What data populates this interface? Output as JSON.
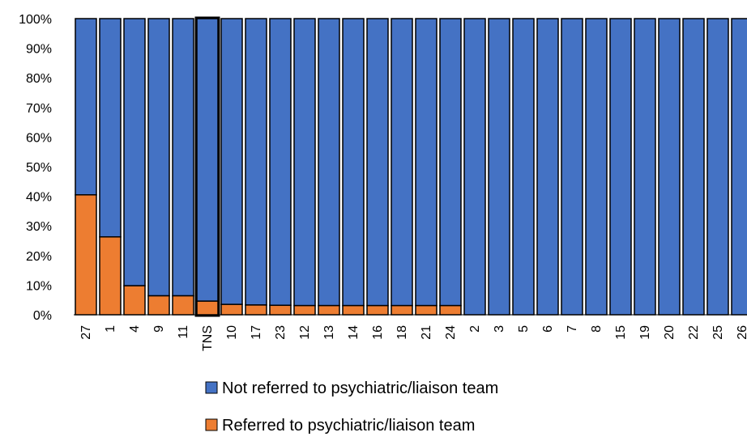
{
  "chart_data": {
    "type": "bar",
    "stacked": true,
    "normalized": true,
    "categories": [
      "27",
      "1",
      "4",
      "9",
      "11",
      "TNS",
      "10",
      "17",
      "23",
      "12",
      "13",
      "14",
      "16",
      "18",
      "21",
      "24",
      "2",
      "3",
      "5",
      "6",
      "7",
      "8",
      "15",
      "19",
      "20",
      "22",
      "25",
      "26"
    ],
    "highlighted_category": "TNS",
    "series": [
      {
        "name": "Referred to psychiatric/liaison team",
        "color": "#ED7D31",
        "values": [
          40.5,
          26.3,
          9.8,
          6.4,
          6.4,
          4.6,
          3.5,
          3.3,
          3.2,
          3.1,
          3.1,
          3.1,
          3.1,
          3.1,
          3.1,
          3.1,
          0,
          0,
          0,
          0,
          0,
          0,
          0,
          0,
          0,
          0,
          0,
          0
        ]
      },
      {
        "name": "Not referred to psychiatric/liaison team",
        "color": "#4472C4",
        "values": [
          59.5,
          73.7,
          90.2,
          93.6,
          93.6,
          95.4,
          96.5,
          96.7,
          96.8,
          96.9,
          96.9,
          96.9,
          96.9,
          96.9,
          96.9,
          96.9,
          100,
          100,
          100,
          100,
          100,
          100,
          100,
          100,
          100,
          100,
          100,
          100
        ]
      }
    ],
    "ylim": [
      0,
      100
    ],
    "yticks": [
      "0%",
      "10%",
      "20%",
      "30%",
      "40%",
      "50%",
      "60%",
      "70%",
      "80%",
      "90%",
      "100%"
    ],
    "legend_position": "bottom",
    "legend_order": [
      "Not referred to psychiatric/liaison team",
      "Referred to psychiatric/liaison team"
    ],
    "grid": false
  }
}
